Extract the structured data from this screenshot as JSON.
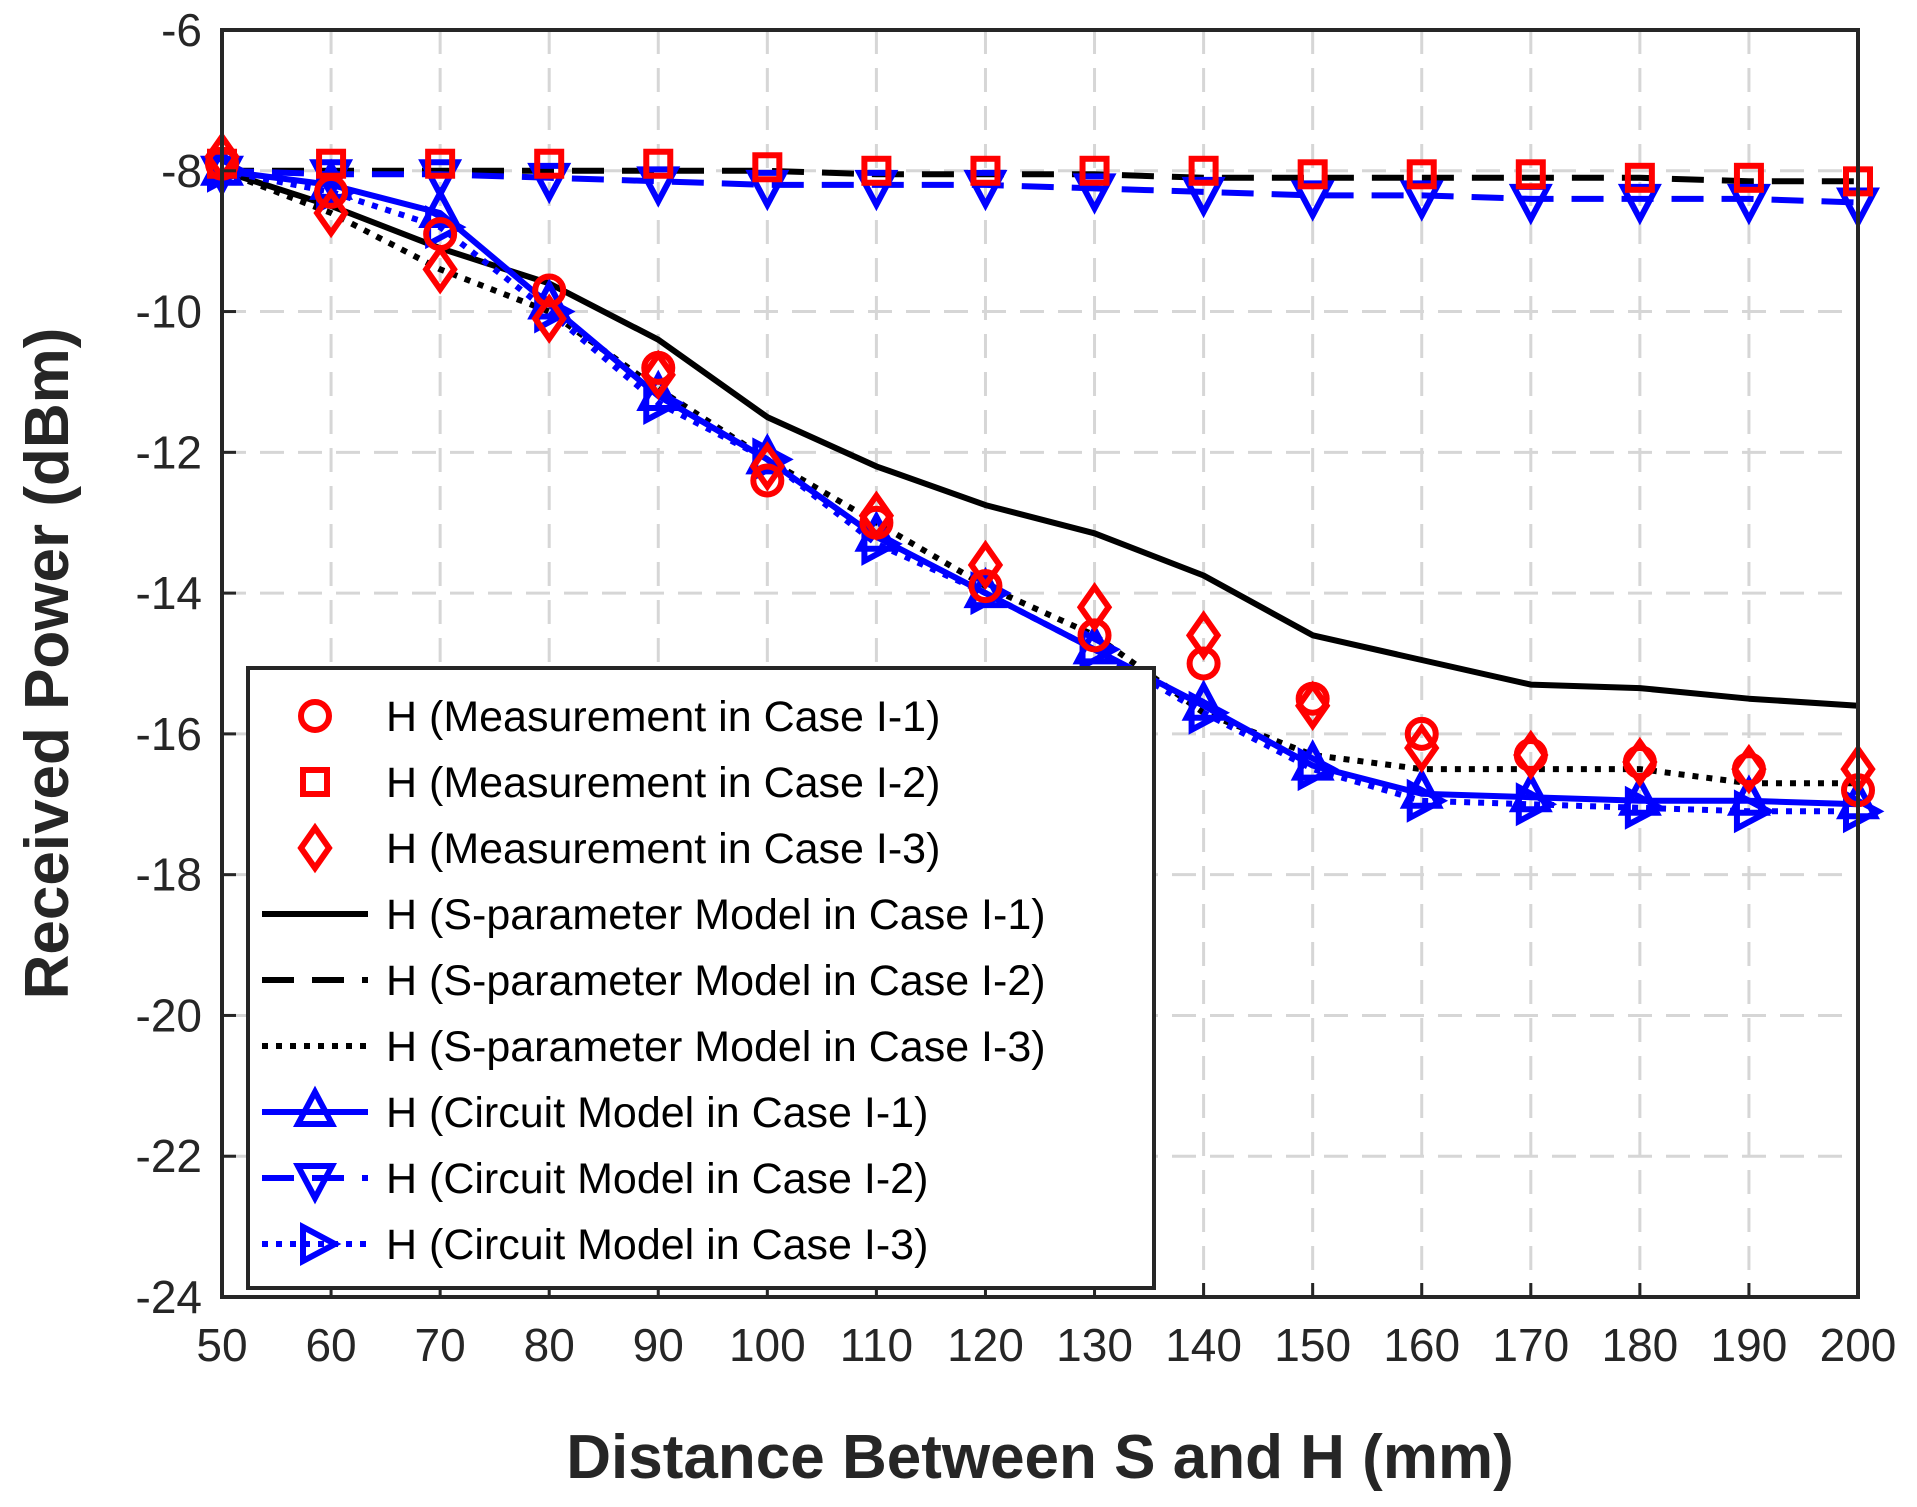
{
  "chart_data": {
    "type": "line",
    "xlabel": "Distance Between S and H (mm)",
    "ylabel": "Received Power (dBm)",
    "xlim": [
      50,
      200
    ],
    "ylim": [
      -24,
      -6
    ],
    "xticks": [
      50,
      60,
      70,
      80,
      90,
      100,
      110,
      120,
      130,
      140,
      150,
      160,
      170,
      180,
      190,
      200
    ],
    "yticks": [
      -6,
      -8,
      -10,
      -12,
      -14,
      -16,
      -18,
      -20,
      -22,
      -24
    ],
    "grid": true,
    "legend_location": "bottom-left",
    "x": [
      50,
      60,
      70,
      80,
      90,
      100,
      110,
      120,
      130,
      140,
      150,
      160,
      170,
      180,
      190,
      200
    ],
    "series": [
      {
        "name": "H (Measurement in Case I-1)",
        "style": "marker-circle",
        "color": "#ff0000",
        "values": [
          -7.9,
          -8.3,
          -8.9,
          -9.7,
          -10.8,
          -12.4,
          -13.0,
          -13.9,
          -14.6,
          -15.0,
          -15.5,
          -16.0,
          -16.3,
          -16.4,
          -16.5,
          -16.8
        ]
      },
      {
        "name": "H (Measurement in Case I-2)",
        "style": "marker-square",
        "color": "#ff0000",
        "values": [
          -7.9,
          -7.9,
          -7.9,
          -7.9,
          -7.9,
          -7.95,
          -8.0,
          -8.0,
          -8.0,
          -8.0,
          -8.05,
          -8.05,
          -8.05,
          -8.1,
          -8.1,
          -8.15
        ]
      },
      {
        "name": "H (Measurement in Case I-3)",
        "style": "marker-diamond",
        "color": "#ff0000",
        "values": [
          -7.8,
          -8.6,
          -9.4,
          -10.1,
          -10.9,
          -12.2,
          -12.9,
          -13.6,
          -14.2,
          -14.6,
          -15.6,
          -16.2,
          -16.3,
          -16.4,
          -16.5,
          -16.5
        ]
      },
      {
        "name": "H (S-parameter Model in Case I-1)",
        "style": "line-solid",
        "color": "#000000",
        "values": [
          -8.0,
          -8.5,
          -9.1,
          -9.6,
          -10.4,
          -11.5,
          -12.2,
          -12.75,
          -13.15,
          -13.75,
          -14.6,
          -14.95,
          -15.3,
          -15.35,
          -15.5,
          -15.6
        ]
      },
      {
        "name": "H (S-parameter Model in Case I-2)",
        "style": "line-dashed",
        "color": "#000000",
        "values": [
          -8.0,
          -8.0,
          -8.0,
          -8.0,
          -8.0,
          -8.0,
          -8.05,
          -8.05,
          -8.05,
          -8.1,
          -8.1,
          -8.1,
          -8.1,
          -8.1,
          -8.15,
          -8.15
        ]
      },
      {
        "name": "H (S-parameter Model in Case I-3)",
        "style": "line-dotted",
        "color": "#000000",
        "values": [
          -8.0,
          -8.6,
          -9.4,
          -10.0,
          -11.1,
          -12.1,
          -13.0,
          -13.9,
          -14.6,
          -15.7,
          -16.3,
          -16.5,
          -16.5,
          -16.5,
          -16.7,
          -16.7
        ]
      },
      {
        "name": "H (Circuit Model in Case I-1)",
        "style": "line-solid-triangle-up",
        "color": "#0000ff",
        "values": [
          -8.0,
          -8.2,
          -8.6,
          -9.9,
          -11.2,
          -12.1,
          -13.2,
          -14.0,
          -14.8,
          -15.6,
          -16.45,
          -16.85,
          -16.9,
          -16.95,
          -16.95,
          -17.0
        ]
      },
      {
        "name": "H (Circuit Model in Case I-2)",
        "style": "line-dashed-triangle-down",
        "color": "#0000ff",
        "values": [
          -8.0,
          -8.05,
          -8.05,
          -8.1,
          -8.15,
          -8.2,
          -8.2,
          -8.2,
          -8.25,
          -8.3,
          -8.35,
          -8.35,
          -8.4,
          -8.4,
          -8.4,
          -8.45
        ]
      },
      {
        "name": "H (Circuit Model in Case I-3)",
        "style": "line-dotted-triangle-right",
        "color": "#0000ff",
        "values": [
          -8.0,
          -8.3,
          -8.8,
          -10.0,
          -11.3,
          -12.1,
          -13.3,
          -14.0,
          -14.8,
          -15.7,
          -16.5,
          -16.95,
          -17.0,
          -17.05,
          -17.1,
          -17.1
        ]
      }
    ]
  }
}
